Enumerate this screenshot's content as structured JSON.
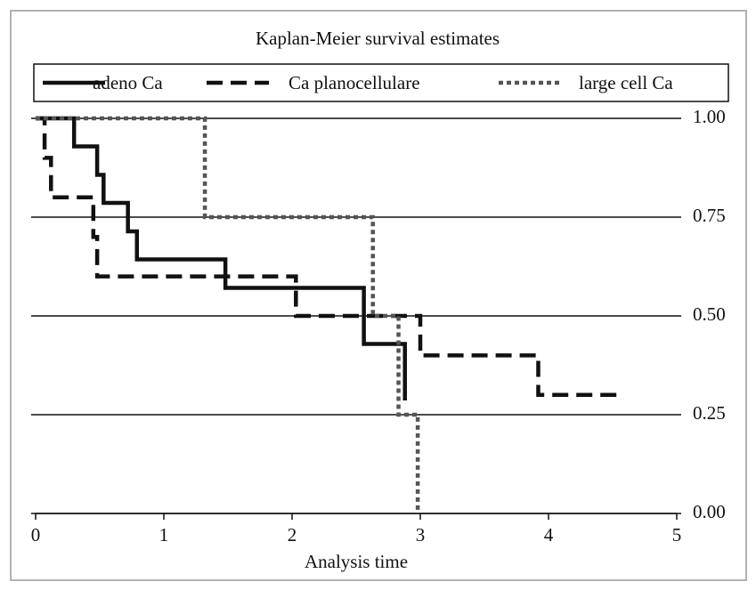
{
  "chart_data": {
    "type": "step",
    "title": "Kaplan-Meier survival estimates",
    "x_label": "Analysis time",
    "xlim": [
      0,
      5
    ],
    "xticks": [
      0,
      1,
      2,
      3,
      4,
      5
    ],
    "ylim": [
      0,
      1
    ],
    "yticks": [
      {
        "value": 0,
        "label": "0.00"
      },
      {
        "value": 0.25,
        "label": "0.25"
      },
      {
        "value": 0.5,
        "label": "0.50"
      },
      {
        "value": 0.75,
        "label": "0.75"
      },
      {
        "value": 1,
        "label": "1.00"
      }
    ],
    "grid": true,
    "series": [
      {
        "name": "adeno Ca",
        "color": "#111111",
        "dash": "solid",
        "x": [
          0,
          0.3,
          0.48,
          0.53,
          0.72,
          0.79,
          1.48,
          2.56,
          2.88
        ],
        "values": [
          1,
          0.929,
          0.857,
          0.786,
          0.714,
          0.643,
          0.571,
          0.429,
          0.286
        ]
      },
      {
        "name": "Ca planocellulare",
        "color": "#111111",
        "dash": "dashed",
        "x": [
          0,
          0.07,
          0.12,
          0.45,
          0.48,
          2.03,
          3.0,
          3.92,
          4.57
        ],
        "values": [
          1,
          0.9,
          0.8,
          0.7,
          0.6,
          0.5,
          0.4,
          0.3,
          0.3
        ]
      },
      {
        "name": "large cell Ca",
        "color": "#555555",
        "dash": "dotted",
        "x": [
          0,
          1.32,
          2.63,
          2.83,
          2.98
        ],
        "values": [
          1,
          0.75,
          0.5,
          0.25,
          0
        ]
      }
    ]
  }
}
